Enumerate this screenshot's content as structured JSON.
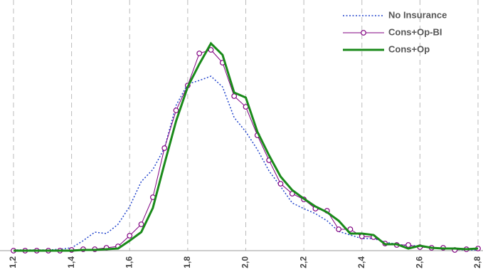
{
  "chart_data": {
    "type": "line",
    "x": [
      1.2,
      1.24,
      1.28,
      1.32,
      1.36,
      1.4,
      1.44,
      1.48,
      1.52,
      1.56,
      1.6,
      1.64,
      1.68,
      1.72,
      1.76,
      1.8,
      1.84,
      1.88,
      1.92,
      1.96,
      2.0,
      2.04,
      2.08,
      2.12,
      2.16,
      2.2,
      2.24,
      2.28,
      2.32,
      2.36,
      2.4,
      2.44,
      2.48,
      2.52,
      2.56,
      2.6,
      2.64,
      2.68,
      2.72,
      2.76,
      2.8
    ],
    "series": [
      {
        "name": "No Insurance",
        "color": "#2244cc",
        "style": "dotted",
        "values": [
          1,
          1,
          1,
          1,
          2,
          4,
          14,
          26,
          24,
          37,
          62,
          97,
          114,
          144,
          204,
          234,
          239,
          245,
          230,
          187,
          167,
          142,
          112,
          90,
          67,
          59,
          52,
          42,
          27,
          22,
          17,
          17,
          12,
          9,
          7,
          7,
          5,
          3,
          2,
          1,
          1
        ]
      },
      {
        "name": "Cons+Op-BI",
        "color": "#800080",
        "style": "markers",
        "values": [
          0,
          0,
          0,
          0,
          0,
          1,
          2,
          2,
          4,
          6,
          21,
          37,
          75,
          144,
          197,
          232,
          277,
          282,
          264,
          217,
          202,
          162,
          127,
          94,
          80,
          72,
          59,
          56,
          30,
          30,
          20,
          19,
          10,
          8,
          8,
          5,
          4,
          4,
          1,
          2,
          3
        ]
      },
      {
        "name": "Cons+Op",
        "color": "#1a8a1a",
        "style": "thick",
        "values": [
          0,
          0,
          0,
          0,
          0,
          0,
          1,
          1,
          2,
          3,
          14,
          26,
          60,
          122,
          182,
          230,
          262,
          291,
          275,
          222,
          215,
          167,
          134,
          104,
          85,
          73,
          62,
          54,
          42,
          24,
          24,
          22,
          9,
          9,
          3,
          7,
          4,
          3,
          3,
          2,
          3
        ]
      }
    ],
    "xlim": [
      1.2,
      2.8
    ],
    "xticks": [
      {
        "value": 1.2,
        "label": "1,2"
      },
      {
        "value": 1.4,
        "label": "1,4"
      },
      {
        "value": 1.6,
        "label": "1,6"
      },
      {
        "value": 1.8,
        "label": "1,8"
      },
      {
        "value": 2.0,
        "label": "2,0"
      },
      {
        "value": 2.2,
        "label": "2,2"
      },
      {
        "value": 2.4,
        "label": "2,4"
      },
      {
        "value": 2.6,
        "label": "2,6"
      },
      {
        "value": 2.8,
        "label": "2,8"
      }
    ],
    "ylim": [
      0,
      300
    ],
    "grid": true,
    "legend": "top-right"
  }
}
